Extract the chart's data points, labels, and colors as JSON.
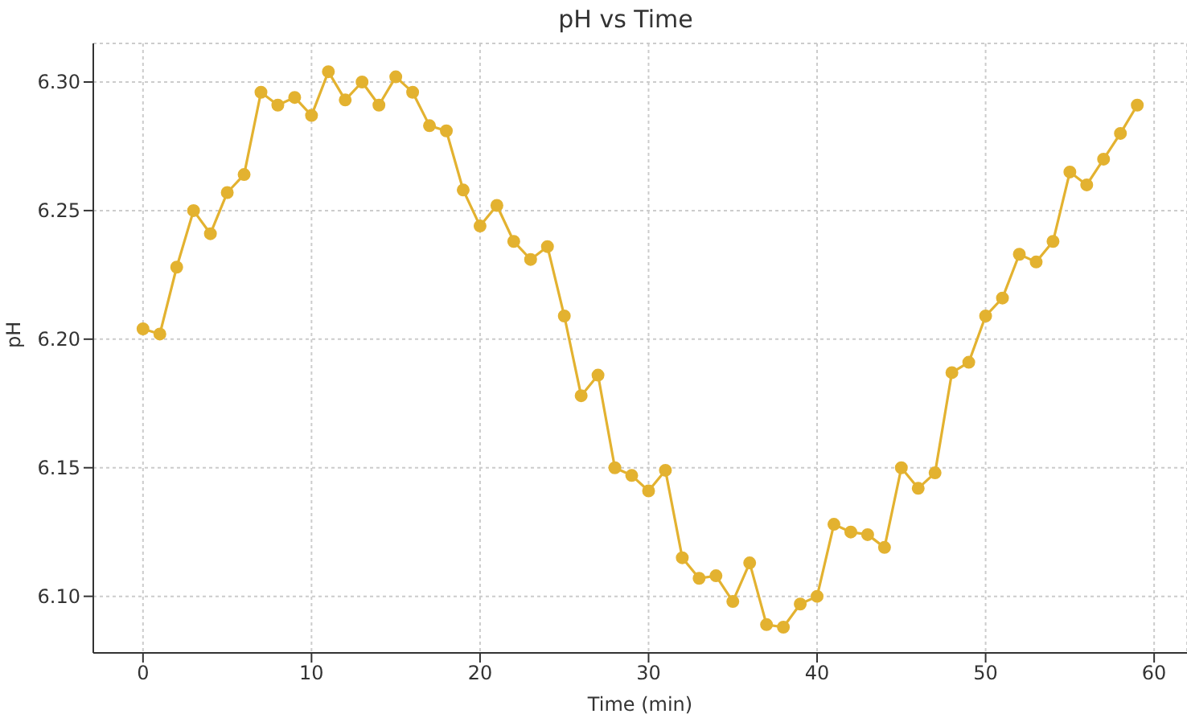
{
  "chart_data": {
    "type": "line",
    "title": "pH vs Time",
    "xlabel": "Time (min)",
    "ylabel": "pH",
    "x": [
      0,
      1,
      2,
      3,
      4,
      5,
      6,
      7,
      8,
      9,
      10,
      11,
      12,
      13,
      14,
      15,
      16,
      17,
      18,
      19,
      20,
      21,
      22,
      23,
      24,
      25,
      26,
      27,
      28,
      29,
      30,
      31,
      32,
      33,
      34,
      35,
      36,
      37,
      38,
      39,
      40,
      41,
      42,
      43,
      44,
      45,
      46,
      47,
      48,
      49,
      50,
      51,
      52,
      53,
      54,
      55,
      56,
      57,
      58,
      59
    ],
    "series": [
      {
        "color": "#e3b230",
        "values": [
          6.204,
          6.202,
          6.228,
          6.25,
          6.241,
          6.257,
          6.264,
          6.296,
          6.291,
          6.294,
          6.287,
          6.304,
          6.293,
          6.3,
          6.291,
          6.302,
          6.296,
          6.283,
          6.281,
          6.258,
          6.244,
          6.252,
          6.238,
          6.231,
          6.236,
          6.209,
          6.178,
          6.186,
          6.15,
          6.147,
          6.141,
          6.149,
          6.115,
          6.107,
          6.108,
          6.098,
          6.113,
          6.089,
          6.088,
          6.097,
          6.1,
          6.128,
          6.125,
          6.124,
          6.119,
          6.15,
          6.142,
          6.148,
          6.187,
          6.191,
          6.209,
          6.216,
          6.233,
          6.23,
          6.238,
          6.265,
          6.26,
          6.27,
          6.28,
          6.291
        ]
      }
    ],
    "xlim": [
      -2.95,
      61.95
    ],
    "xticks": [
      0,
      10,
      20,
      30,
      40,
      50,
      60
    ],
    "ylim": [
      6.078,
      6.315
    ],
    "yticks": [
      {
        "value": 6.1,
        "label": "6.10"
      },
      {
        "value": 6.15,
        "label": "6.15"
      },
      {
        "value": 6.2,
        "label": "6.20"
      },
      {
        "value": 6.25,
        "label": "6.25"
      },
      {
        "value": 6.3,
        "label": "6.30"
      }
    ],
    "grid": true,
    "marker": "circle",
    "line_style": "solid",
    "legend": false
  }
}
